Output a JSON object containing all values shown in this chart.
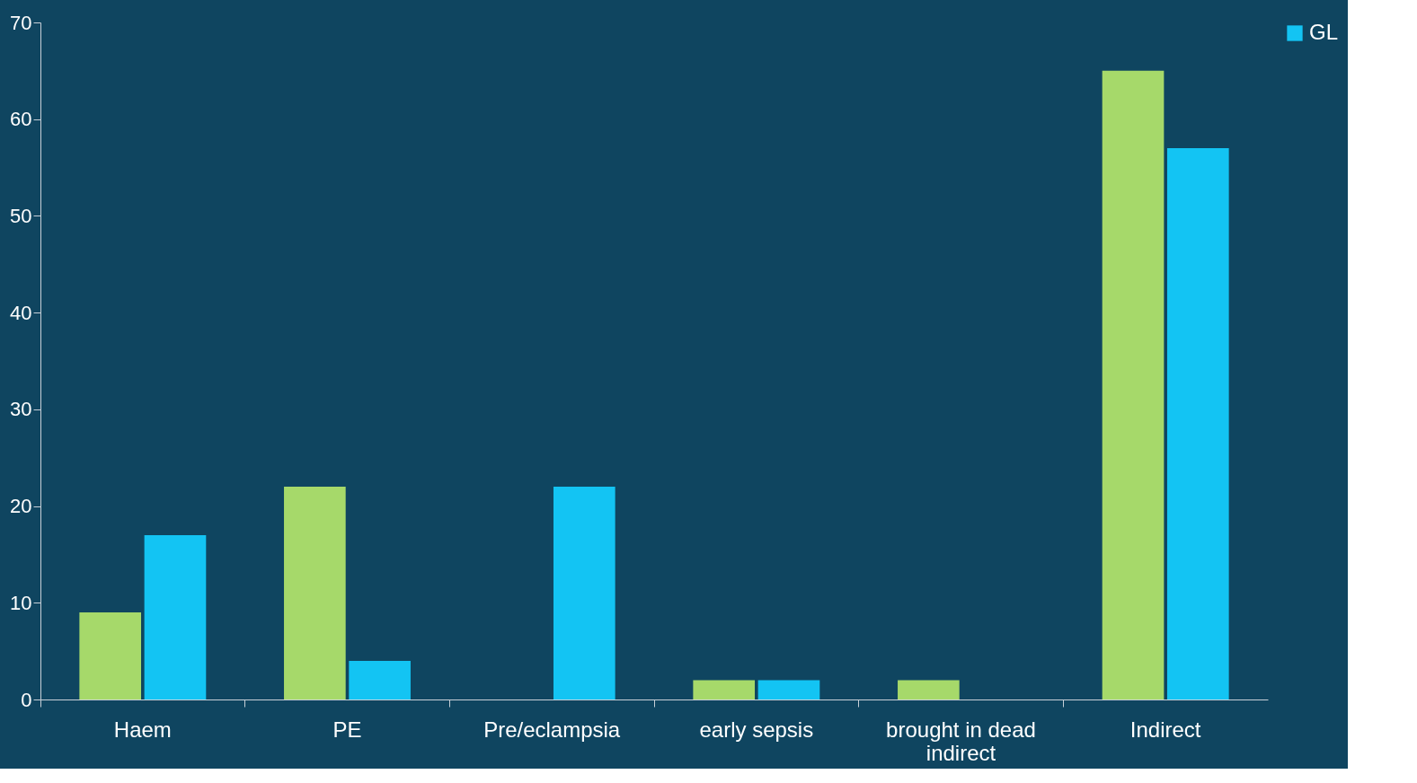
{
  "chart_data": {
    "type": "bar",
    "categories": [
      "Haem",
      "PE",
      "Pre/eclampsia",
      "early sepsis",
      "brought in dead indirect",
      "Indirect"
    ],
    "series": [
      {
        "color": "#a6d96a",
        "values": [
          9,
          22,
          0,
          2,
          2,
          65
        ]
      },
      {
        "name": "GL",
        "color": "#13c4f3",
        "values": [
          17,
          4,
          22,
          2,
          0,
          57
        ]
      }
    ],
    "ylim": [
      0,
      70
    ],
    "yticks": [
      0,
      10,
      20,
      30,
      40,
      50,
      60,
      70
    ],
    "grid": false,
    "legend": "right"
  }
}
